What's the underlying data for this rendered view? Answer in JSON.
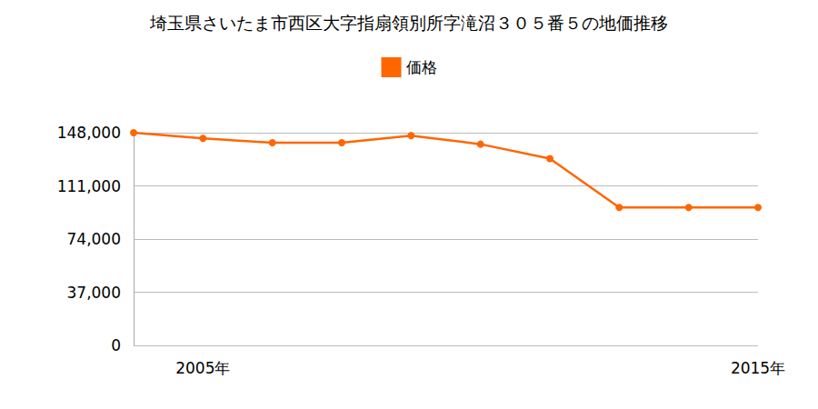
{
  "chart_data": {
    "type": "line",
    "title": "埼玉県さいたま市西区大字指扇領別所字滝沼３０５番５の地価推移",
    "categories": [
      null,
      "2005年",
      null,
      null,
      null,
      null,
      null,
      null,
      null,
      "2015年"
    ],
    "series": [
      {
        "name": "価格",
        "color": "#ff6600",
        "marker": "circle",
        "values": [
          148000,
          144000,
          141000,
          141000,
          146000,
          140000,
          130000,
          96000,
          96000,
          96000
        ]
      }
    ],
    "ylim": [
      0,
      148000
    ],
    "yticks": [
      0,
      {
        "value": 37000,
        "label": "37,000"
      },
      {
        "value": 74000,
        "label": "74,000"
      },
      {
        "value": 111000,
        "label": "111,000"
      },
      {
        "value": 148000,
        "label": "148,000"
      }
    ],
    "grid": true,
    "legend": "top"
  }
}
